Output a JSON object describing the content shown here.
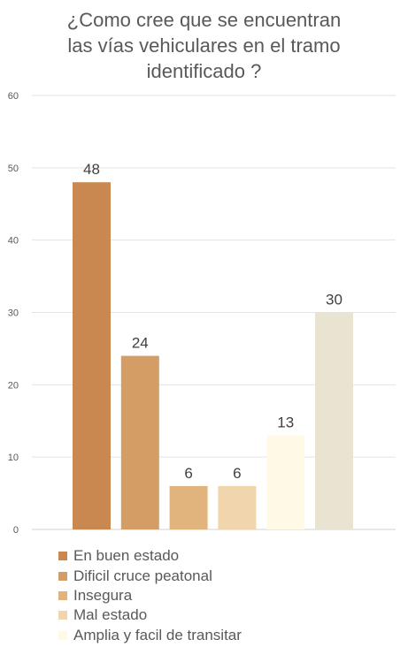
{
  "title_lines": [
    "¿Como cree que se encuentran",
    "las vías vehiculares en el tramo",
    "identificado ?"
  ],
  "chart_data": {
    "type": "bar",
    "title": "¿Como cree que se encuentran las vías vehiculares en el tramo identificado ?",
    "categories": [
      "En buen estado",
      "Dificil cruce peatonal",
      "Insegura",
      "Mal estado",
      "Amplia y facil de transitar",
      ""
    ],
    "values": [
      48,
      24,
      6,
      6,
      13,
      30
    ],
    "colors": [
      "#c8884f",
      "#d49d65",
      "#e2b47d",
      "#f0d5ad",
      "#fff9e6",
      "#e8e4d1"
    ],
    "ylim": [
      0,
      60
    ],
    "yticks": [
      0,
      10,
      20,
      30,
      40,
      50,
      60
    ],
    "grid": true,
    "data_labels": true,
    "legend_position": "bottom"
  },
  "legend": [
    {
      "label": "En buen estado",
      "color": "#c8884f"
    },
    {
      "label": "Dificil cruce peatonal",
      "color": "#d49d65"
    },
    {
      "label": "Insegura",
      "color": "#e2b47d"
    },
    {
      "label": "Mal estado",
      "color": "#f0d5ad"
    },
    {
      "label": "Amplia y facil de transitar",
      "color": "#fff9e6"
    }
  ]
}
